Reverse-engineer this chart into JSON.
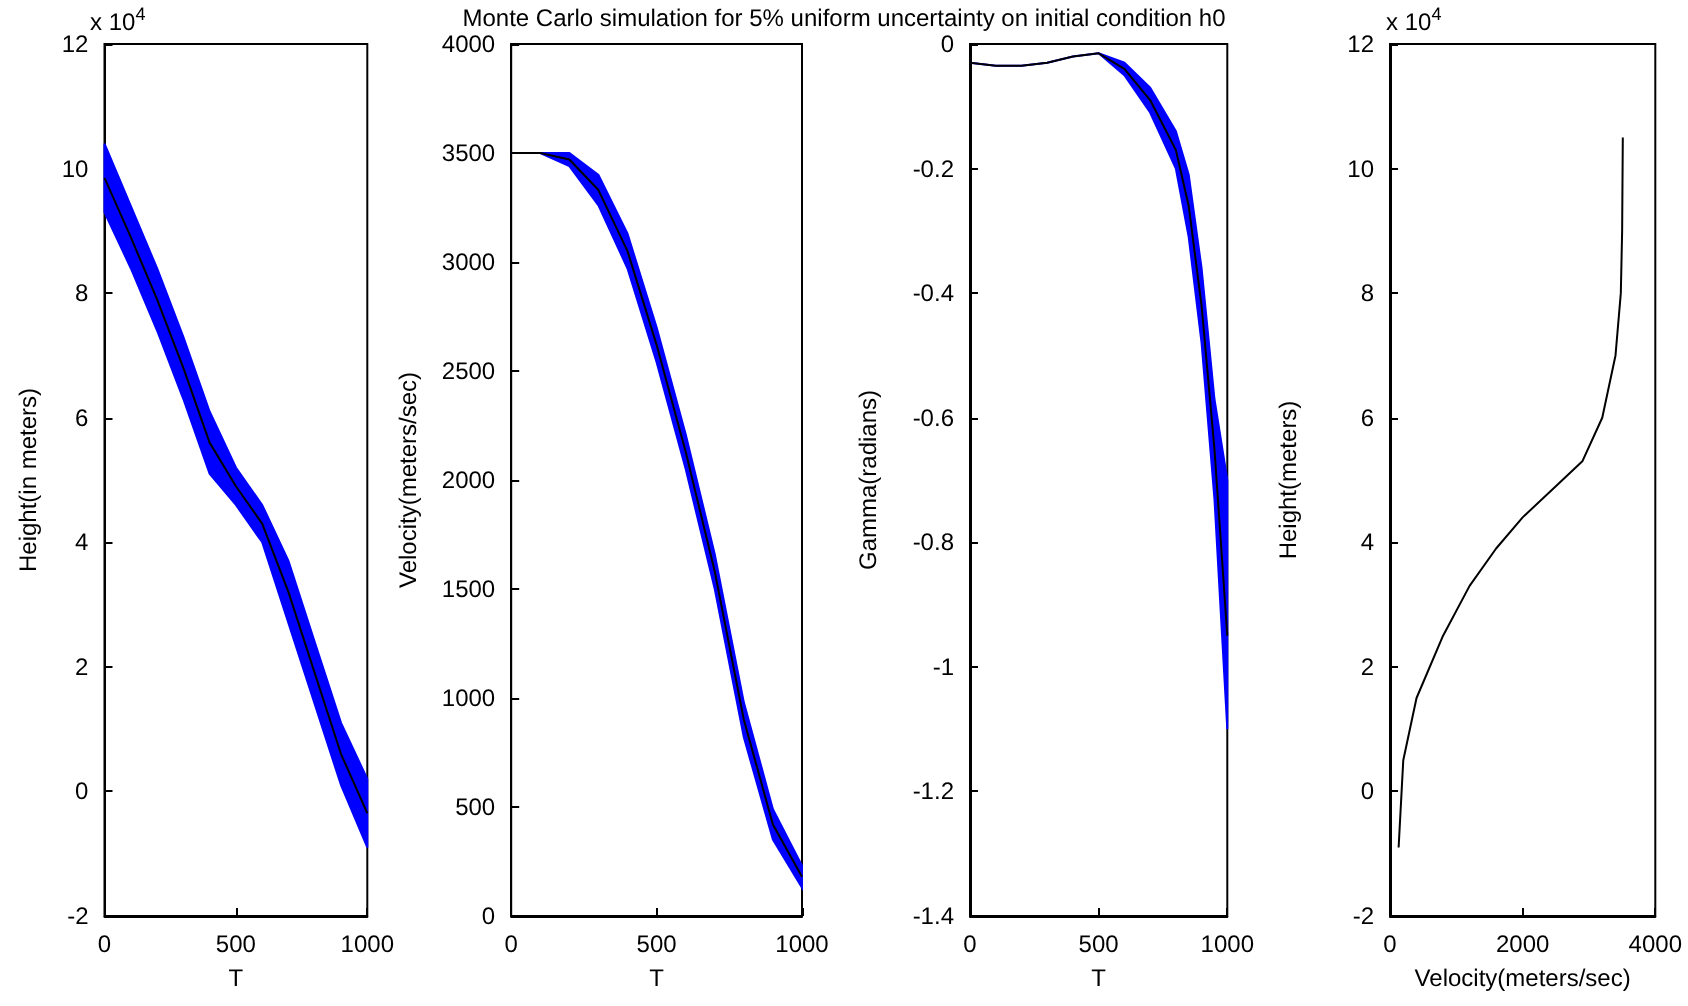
{
  "chart_data": [
    {
      "type": "line",
      "xlabel": "T",
      "ylabel": "Height(in meters)",
      "annotations": [
        "x 10$^{4}$"
      ],
      "x": [
        0,
        100,
        200,
        300,
        400,
        500,
        600,
        700,
        800,
        900,
        1000
      ],
      "xlim": [
        0,
        1000
      ],
      "xticks": [
        0,
        500,
        1000
      ],
      "ylim": [
        -2,
        12
      ],
      "yticks": [
        -2,
        0,
        2,
        4,
        6,
        8,
        10,
        12
      ],
      "grid": false,
      "series": [
        {
          "color": "#000000",
          "values": [
            9.85,
            8.9,
            7.9,
            6.8,
            5.6,
            4.9,
            4.3,
            3.2,
            1.9,
            0.6,
            -0.35
          ],
          "lower": [
            9.3,
            8.4,
            7.4,
            6.3,
            5.1,
            4.6,
            4.0,
            2.7,
            1.4,
            0.1,
            -0.9
          ],
          "upper": [
            10.4,
            9.4,
            8.4,
            7.3,
            6.1,
            5.2,
            4.6,
            3.7,
            2.4,
            1.1,
            0.2
          ]
        }
      ]
    },
    {
      "type": "line",
      "title": "Monte Carlo simulation for 5% uniform uncertainty on initial condition h0",
      "xlabel": "T",
      "ylabel": "Velocity(meters/sec)",
      "x": [
        0,
        100,
        200,
        300,
        400,
        500,
        600,
        700,
        800,
        900,
        1000
      ],
      "xlim": [
        0,
        1000
      ],
      "xticks": [
        0,
        500,
        1000
      ],
      "ylim": [
        0,
        4000
      ],
      "yticks": [
        0,
        500,
        1000,
        1500,
        2000,
        2500,
        3000,
        3500,
        4000
      ],
      "grid": false,
      "series": [
        {
          "color": "#000000",
          "values": [
            3500,
            3500,
            3470,
            3330,
            3050,
            2620,
            2130,
            1580,
            900,
            420,
            180
          ],
          "lower": [
            3500,
            3500,
            3440,
            3260,
            2970,
            2540,
            2050,
            1500,
            820,
            350,
            130
          ],
          "upper": [
            3500,
            3500,
            3500,
            3400,
            3130,
            2700,
            2210,
            1660,
            980,
            490,
            230
          ]
        }
      ]
    },
    {
      "type": "line",
      "xlabel": "T",
      "ylabel": "Gamma(radians)",
      "x": [
        0,
        100,
        200,
        300,
        400,
        500,
        600,
        700,
        800,
        850,
        900,
        950,
        1000
      ],
      "xlim": [
        0,
        1000
      ],
      "xticks": [
        0,
        500,
        1000
      ],
      "ylim": [
        -1.4,
        0
      ],
      "yticks": [
        -1.4,
        -1.2,
        -1,
        -0.8,
        -0.6,
        -0.4,
        -0.2,
        0
      ],
      "grid": false,
      "series": [
        {
          "color": "#000000",
          "values": [
            -0.03,
            -0.035,
            -0.035,
            -0.03,
            -0.02,
            -0.015,
            -0.04,
            -0.09,
            -0.17,
            -0.26,
            -0.42,
            -0.65,
            -0.95
          ],
          "lower": [
            -0.03,
            -0.035,
            -0.035,
            -0.03,
            -0.02,
            -0.015,
            -0.05,
            -0.11,
            -0.2,
            -0.31,
            -0.48,
            -0.73,
            -1.1
          ],
          "upper": [
            -0.03,
            -0.035,
            -0.035,
            -0.03,
            -0.02,
            -0.015,
            -0.03,
            -0.07,
            -0.14,
            -0.21,
            -0.36,
            -0.57,
            -0.7
          ]
        }
      ]
    },
    {
      "type": "line",
      "xlabel": "Velocity(meters/sec)",
      "ylabel": "Height(meters)",
      "annotations": [
        "x 10$^{4}$"
      ],
      "xlim": [
        0,
        4000
      ],
      "xticks": [
        0,
        2000,
        4000
      ],
      "ylim": [
        -2,
        12
      ],
      "yticks": [
        -2,
        0,
        2,
        4,
        6,
        8,
        10,
        12
      ],
      "grid": false,
      "series": [
        {
          "color": "#000000",
          "x": [
            130,
            200,
            400,
            800,
            1200,
            1600,
            2000,
            2500,
            2900,
            3200,
            3400,
            3480,
            3500,
            3510
          ],
          "values": [
            -0.9,
            0.5,
            1.5,
            2.5,
            3.3,
            3.9,
            4.4,
            4.9,
            5.3,
            6.0,
            7.0,
            8.0,
            9.0,
            10.5
          ]
        }
      ]
    }
  ]
}
